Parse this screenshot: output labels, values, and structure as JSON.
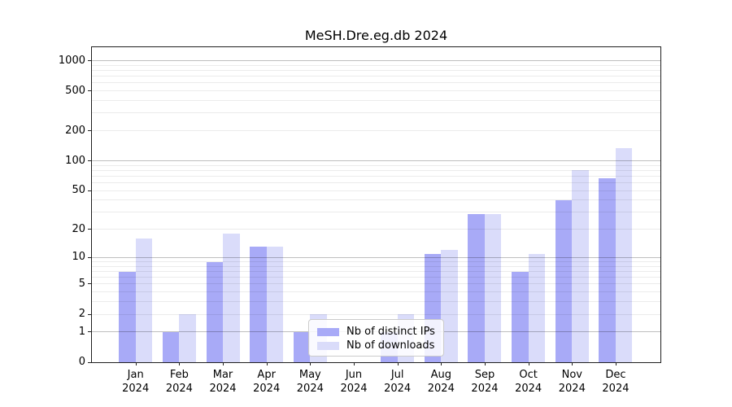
{
  "figure_title": "MeSH.Dre.eg.db 2024",
  "chart_data": {
    "type": "bar",
    "title": "MeSH.Dre.eg.db 2024",
    "categories": [
      "Jan 2024",
      "Feb 2024",
      "Mar 2024",
      "Apr 2024",
      "May 2024",
      "Jun 2024",
      "Jul 2024",
      "Aug 2024",
      "Sep 2024",
      "Oct 2024",
      "Nov 2024",
      "Dec 2024"
    ],
    "x_tick_line1": [
      "Jan",
      "Feb",
      "Mar",
      "Apr",
      "May",
      "Jun",
      "Jul",
      "Aug",
      "Sep",
      "Oct",
      "Nov",
      "Dec"
    ],
    "x_tick_line2": "2024",
    "series": [
      {
        "name": "Nb of distinct IPs",
        "color": "#a8aaf7",
        "values": [
          7,
          1,
          9,
          13,
          1,
          0,
          1,
          11,
          29,
          7,
          40,
          67
        ]
      },
      {
        "name": "Nb of downloads",
        "color": "#dadcfa",
        "values": [
          16,
          2,
          18,
          13,
          2,
          0,
          2,
          12,
          29,
          11,
          81,
          135
        ]
      }
    ],
    "xlabel": "",
    "ylabel": "",
    "y_scale": "log1p",
    "y_ticks": [
      0,
      1,
      2,
      5,
      10,
      20,
      50,
      100,
      200,
      500,
      1000
    ],
    "y_major_grid": [
      1,
      10,
      100,
      1000
    ],
    "y_minor_grid": [
      2,
      3,
      4,
      5,
      6,
      7,
      8,
      9,
      20,
      30,
      40,
      50,
      60,
      70,
      80,
      90,
      200,
      300,
      400,
      500,
      600,
      700,
      800,
      900
    ],
    "ylim": [
      0,
      1350
    ],
    "grid": true,
    "grid_above_bars": true,
    "legend_position": "inside-bottom-center-left",
    "colors": {
      "bar_distinct_ips": "#a8aaf7",
      "bar_downloads": "#dadcfa",
      "major_grid": "#bfbfbf",
      "minor_grid": "#ececec",
      "axis": "#1f1f1f",
      "text": "#000000",
      "background": "#ffffff"
    }
  }
}
